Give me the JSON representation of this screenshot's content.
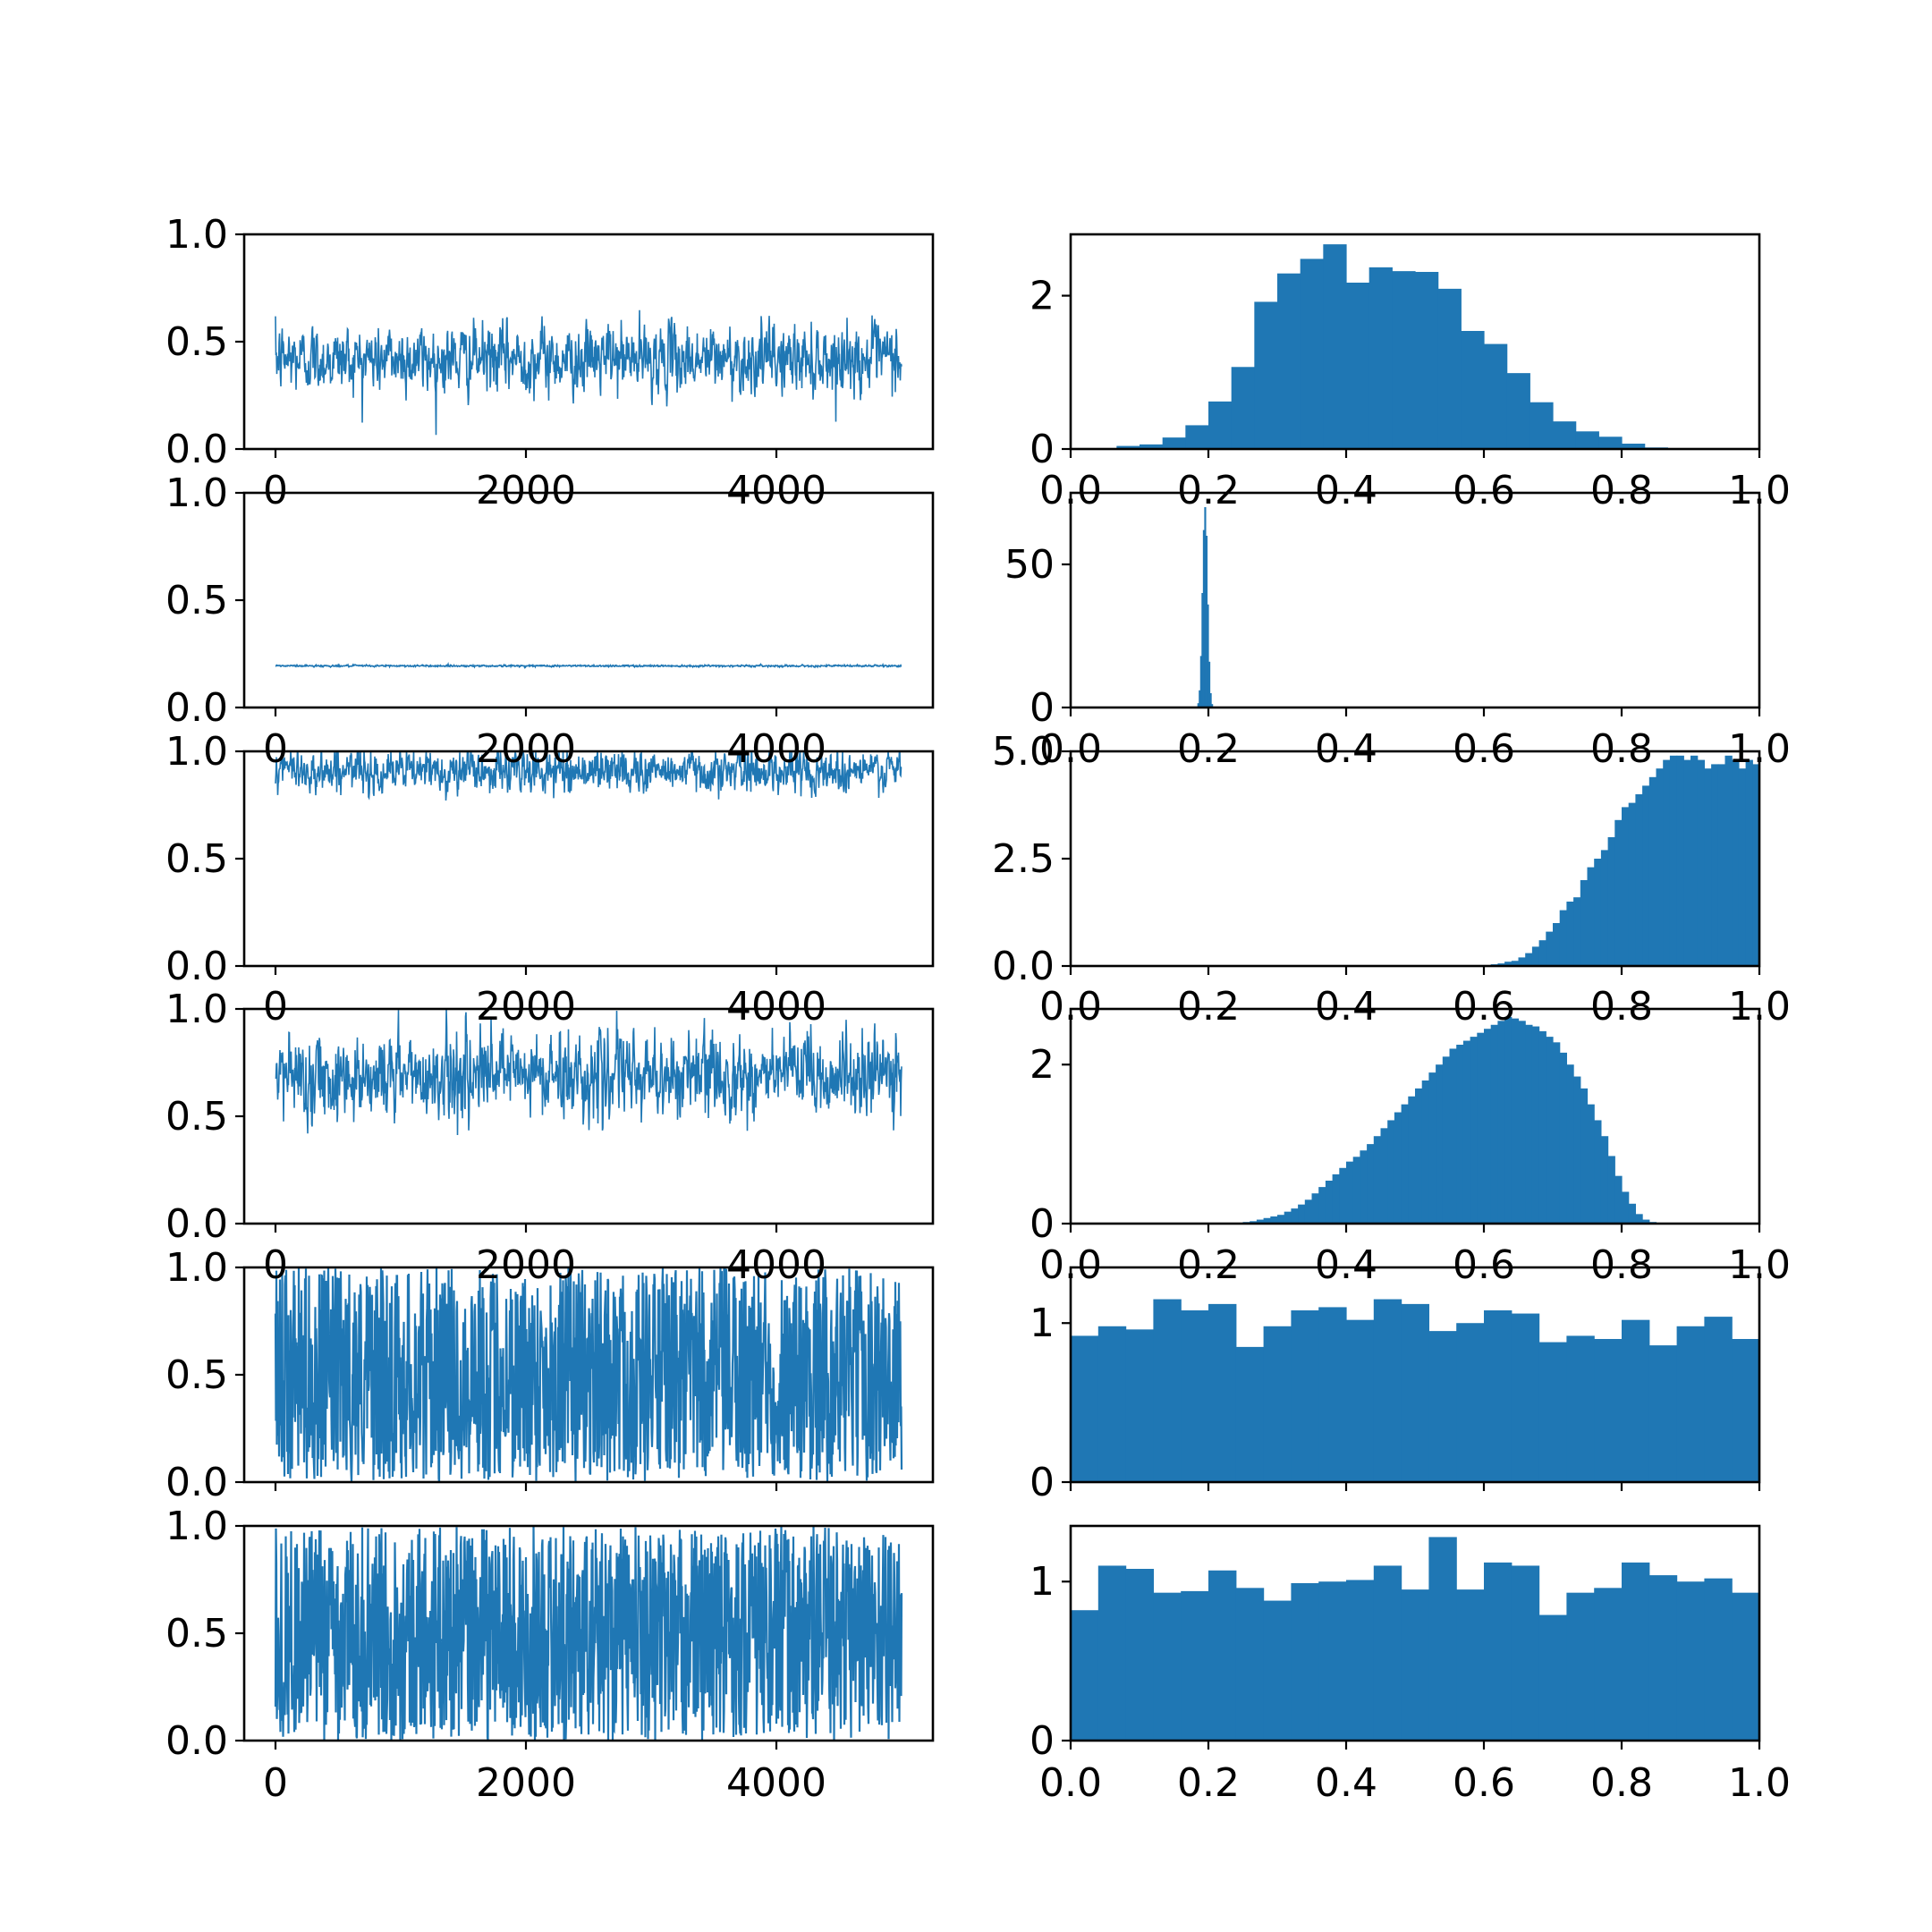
{
  "figure": {
    "layout": "6 rows x 2 columns (trace plot left, histogram right)",
    "series_color": "#1f77b4"
  },
  "chart_data": [
    {
      "panel": "row1-trace",
      "type": "line",
      "title": "",
      "xlabel": "",
      "ylabel": "",
      "grid": false,
      "x_range": [
        0,
        5000
      ],
      "xlim": [
        -250,
        5250
      ],
      "ylim": [
        0,
        1
      ],
      "x_ticks": [],
      "y_ticks": [
        "0.0",
        "0.5",
        "1.0"
      ],
      "trace_params": {
        "mean": 0.42,
        "sd": 0.11
      }
    },
    {
      "panel": "row1-hist",
      "type": "bar",
      "title": "",
      "xlabel": "",
      "ylabel": "",
      "grid": false,
      "bin_edges_range": [
        0.0,
        1.0
      ],
      "xlim": [
        0,
        1
      ],
      "ylim": [
        0,
        2.8
      ],
      "bins_start": 0.0,
      "bins_end": 1.0,
      "values": [
        0,
        0.01,
        0.04,
        0.06,
        0.15,
        0.31,
        0.62,
        1.07,
        1.92,
        2.29,
        2.48,
        2.67,
        2.17,
        2.37,
        2.32,
        2.31,
        2.09,
        1.54,
        1.37,
        0.99,
        0.61,
        0.36,
        0.23,
        0.16,
        0.07,
        0.02,
        0,
        0,
        0,
        0
      ],
      "x_ticks": [],
      "y_ticks": [
        "0",
        "2"
      ]
    },
    {
      "panel": "row2-trace",
      "type": "line",
      "title": "",
      "xlabel": "",
      "ylabel": "",
      "grid": false,
      "x_range": [
        0,
        5000
      ],
      "xlim": [
        -250,
        5250
      ],
      "ylim": [
        0,
        1
      ],
      "x_ticks": [
        "0",
        "2000",
        "4000"
      ],
      "y_ticks": [
        "0.0",
        "0.5",
        "1.0"
      ],
      "trace_params": {
        "mean": 0.194,
        "sd": 0.003
      }
    },
    {
      "panel": "row2-hist",
      "type": "bar",
      "title": "",
      "xlabel": "",
      "ylabel": "",
      "grid": false,
      "xlim": [
        0,
        1
      ],
      "ylim": [
        0,
        75
      ],
      "bins_start": 0.182,
      "bins_end": 0.206,
      "values": [
        0.3,
        1.5,
        6,
        18,
        40,
        62,
        70,
        60,
        36,
        16,
        5,
        1.2
      ],
      "x_ticks": [
        "0.0",
        "0.2",
        "0.4",
        "0.6",
        "0.8",
        "1.0"
      ],
      "y_ticks": [
        "0",
        "50"
      ]
    },
    {
      "panel": "row3-trace",
      "type": "line",
      "title": "",
      "xlabel": "",
      "ylabel": "",
      "grid": false,
      "x_range": [
        0,
        5000
      ],
      "xlim": [
        -250,
        5250
      ],
      "ylim": [
        0,
        1
      ],
      "x_ticks": [
        "0",
        "2000",
        "4000"
      ],
      "y_ticks": [
        "0.0",
        "0.5",
        "1.0"
      ],
      "trace_params": {
        "mean": 0.91,
        "sd": 0.07
      }
    },
    {
      "panel": "row3-hist",
      "type": "bar",
      "title": "",
      "xlabel": "",
      "ylabel": "",
      "grid": false,
      "xlim": [
        0,
        1
      ],
      "ylim": [
        0,
        5.0
      ],
      "bins_start": 0.0,
      "bins_end": 1.0,
      "values": [
        0,
        0,
        0,
        0,
        0,
        0,
        0,
        0,
        0,
        0,
        0,
        0,
        0,
        0,
        0,
        0,
        0,
        0,
        0,
        0,
        0,
        0,
        0,
        0,
        0,
        0,
        0,
        0,
        0,
        0,
        0,
        0,
        0,
        0,
        0,
        0,
        0,
        0,
        0,
        0,
        0,
        0,
        0,
        0,
        0,
        0,
        0,
        0,
        0,
        0,
        0,
        0,
        0,
        0,
        0,
        0,
        0,
        0,
        0,
        0,
        0,
        0.04,
        0.06,
        0.1,
        0.12,
        0.2,
        0.3,
        0.45,
        0.6,
        0.8,
        1.0,
        1.3,
        1.5,
        1.6,
        2.0,
        2.3,
        2.5,
        2.7,
        3.0,
        3.4,
        3.7,
        3.8,
        4.0,
        4.2,
        4.4,
        4.6,
        4.8,
        4.9,
        4.9,
        4.8,
        4.9,
        4.8,
        4.6,
        4.7,
        4.7,
        4.9,
        4.8,
        4.6,
        4.8,
        4.7
      ],
      "x_ticks": [
        "0.0",
        "0.2",
        "0.4",
        "0.6",
        "0.8",
        "1.0"
      ],
      "y_ticks": [
        "0.0",
        "2.5",
        "5.0"
      ]
    },
    {
      "panel": "row4-trace",
      "type": "line",
      "title": "",
      "xlabel": "",
      "ylabel": "",
      "grid": false,
      "x_range": [
        0,
        5000
      ],
      "xlim": [
        -250,
        5250
      ],
      "ylim": [
        0,
        1
      ],
      "x_ticks": [
        "0",
        "2000",
        "4000"
      ],
      "y_ticks": [
        "0.0",
        "0.5",
        "1.0"
      ],
      "trace_params": {
        "mean": 0.69,
        "sd": 0.14
      }
    },
    {
      "panel": "row4-hist",
      "type": "bar",
      "title": "",
      "xlabel": "",
      "ylabel": "",
      "grid": false,
      "xlim": [
        0,
        1
      ],
      "ylim": [
        0,
        2.7
      ],
      "bins_start": 0.0,
      "bins_end": 1.0,
      "values": [
        0,
        0,
        0,
        0,
        0,
        0,
        0,
        0,
        0,
        0,
        0,
        0,
        0,
        0,
        0,
        0,
        0,
        0,
        0,
        0,
        0,
        0,
        0,
        0,
        0,
        0.02,
        0.03,
        0.05,
        0.07,
        0.09,
        0.11,
        0.15,
        0.19,
        0.24,
        0.3,
        0.38,
        0.46,
        0.54,
        0.62,
        0.7,
        0.78,
        0.84,
        0.92,
        1.0,
        1.1,
        1.2,
        1.3,
        1.4,
        1.5,
        1.6,
        1.7,
        1.8,
        1.9,
        2.0,
        2.1,
        2.2,
        2.25,
        2.3,
        2.35,
        2.4,
        2.45,
        2.5,
        2.55,
        2.6,
        2.58,
        2.55,
        2.5,
        2.48,
        2.42,
        2.35,
        2.28,
        2.15,
        2.0,
        1.85,
        1.7,
        1.5,
        1.3,
        1.1,
        0.85,
        0.6,
        0.4,
        0.25,
        0.12,
        0.05,
        0.02,
        0,
        0,
        0,
        0,
        0,
        0,
        0,
        0,
        0,
        0,
        0,
        0,
        0,
        0,
        0
      ],
      "x_ticks": [
        "0.0",
        "0.2",
        "0.4",
        "0.6",
        "0.8",
        "1.0"
      ],
      "y_ticks": [
        "0",
        "2"
      ]
    },
    {
      "panel": "row5-trace",
      "type": "line",
      "title": "",
      "xlabel": "",
      "ylabel": "",
      "grid": false,
      "x_range": [
        0,
        5000
      ],
      "xlim": [
        -250,
        5250
      ],
      "ylim": [
        0,
        1
      ],
      "x_ticks": [
        "0",
        "2000",
        "4000"
      ],
      "y_ticks": [
        "0.0",
        "0.5",
        "1.0"
      ],
      "trace_params": {
        "distribution": "uniform",
        "range": [
          0,
          1
        ]
      }
    },
    {
      "panel": "row5-hist",
      "type": "bar",
      "title": "",
      "xlabel": "",
      "ylabel": "",
      "grid": false,
      "xlim": [
        0,
        1
      ],
      "ylim": [
        0,
        1.35
      ],
      "bins_start": 0.0,
      "bins_end": 1.0,
      "values": [
        0.92,
        0.98,
        0.96,
        1.15,
        1.08,
        1.12,
        0.85,
        0.98,
        1.08,
        1.1,
        1.02,
        1.15,
        1.12,
        0.95,
        1.0,
        1.08,
        1.06,
        0.88,
        0.92,
        0.9,
        1.02,
        0.86,
        0.98,
        1.04,
        0.9
      ],
      "x_ticks": [
        "0.0",
        "0.2",
        "0.4",
        "0.6",
        "0.8",
        "1.0"
      ],
      "y_ticks": [
        "0",
        "1"
      ]
    },
    {
      "panel": "row6-trace",
      "type": "line",
      "title": "",
      "xlabel": "",
      "ylabel": "",
      "grid": false,
      "x_range": [
        0,
        5000
      ],
      "xlim": [
        -250,
        5250
      ],
      "ylim": [
        0,
        1
      ],
      "x_ticks": [
        "0",
        "2000",
        "4000"
      ],
      "y_ticks": [
        "0.0",
        "0.5",
        "1.0"
      ],
      "trace_params": {
        "distribution": "uniform",
        "range": [
          0,
          1
        ]
      }
    },
    {
      "panel": "row6-hist",
      "type": "bar",
      "title": "",
      "xlabel": "",
      "ylabel": "",
      "grid": false,
      "xlim": [
        0,
        1
      ],
      "ylim": [
        0,
        1.35
      ],
      "bins_start": 0.0,
      "bins_end": 1.0,
      "values": [
        0.82,
        1.1,
        1.08,
        0.93,
        0.94,
        1.07,
        0.96,
        0.88,
        0.99,
        1.0,
        1.01,
        1.1,
        0.95,
        1.28,
        0.95,
        1.12,
        1.1,
        0.79,
        0.93,
        0.96,
        1.12,
        1.04,
        1.0,
        1.02,
        0.93
      ],
      "x_ticks": [
        "0.0",
        "0.2",
        "0.4",
        "0.6",
        "0.8",
        "1.0"
      ],
      "y_ticks": [
        "0",
        "1"
      ]
    }
  ]
}
